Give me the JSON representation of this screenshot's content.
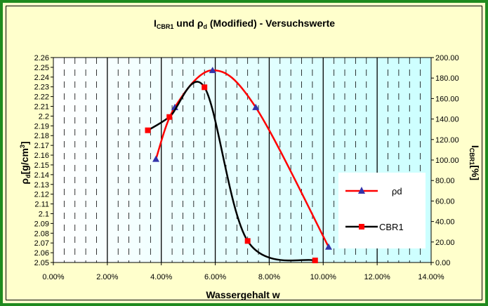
{
  "chart_data": {
    "type": "line",
    "title": "I_CBR1 und ρ_d (Modified) - Versuchswerte",
    "title_parts": {
      "a": "I",
      "a_sub": "CBR1",
      "b": " und ",
      "c": "ρ",
      "c_sub": "d",
      "d": " (Modified) - Versuchswerte"
    },
    "xlabel": "Wassergehalt w",
    "ylabel_left": {
      "main": "ρ",
      "sub": "d",
      "rest": "[g/cm",
      "sup": "3",
      "end": "]"
    },
    "ylabel_right": {
      "main": "I",
      "sub": "CBR1",
      "rest": "[%]"
    },
    "x_ticks": [
      "0.00%",
      "2.00%",
      "4.00%",
      "6.00%",
      "8.00%",
      "10.00%",
      "12.00%",
      "14.00%"
    ],
    "xlim": [
      0,
      14
    ],
    "y_left_ticks": [
      "2.05",
      "2.06",
      "2.07",
      "2.08",
      "2.09",
      "2.1",
      "2.11",
      "2.12",
      "2.13",
      "2.14",
      "2.15",
      "2.16",
      "2.17",
      "2.18",
      "2.19",
      "2.2",
      "2.21",
      "2.22",
      "2.23",
      "2.24",
      "2.25",
      "2.26"
    ],
    "ylim_left": [
      2.05,
      2.26
    ],
    "y_right_ticks": [
      "0.00",
      "20.00",
      "40.00",
      "60.00",
      "80.00",
      "100.00",
      "120.00",
      "140.00",
      "160.00",
      "180.00",
      "200.00"
    ],
    "ylim_right": [
      0,
      200
    ],
    "series": [
      {
        "name": "ρd",
        "axis": "left",
        "color": "#ff0000",
        "marker_color": "#3333aa",
        "marker": "triangle",
        "x": [
          3.8,
          4.5,
          5.9,
          7.5,
          10.2
        ],
        "y": [
          2.156,
          2.209,
          2.247,
          2.209,
          2.066
        ]
      },
      {
        "name": "CBR1",
        "axis": "right",
        "color": "#000000",
        "marker_color": "#ff0000",
        "marker": "square",
        "x": [
          3.5,
          4.3,
          5.6,
          7.2,
          9.7
        ],
        "y": [
          129,
          142,
          171,
          21,
          2
        ]
      }
    ],
    "legend_placement": "right",
    "grid": true
  },
  "colors": {
    "border": "#1f8a1f",
    "background": "#ffffcc",
    "plot_left": "#ffffff",
    "plot_right": "#ccffff"
  }
}
